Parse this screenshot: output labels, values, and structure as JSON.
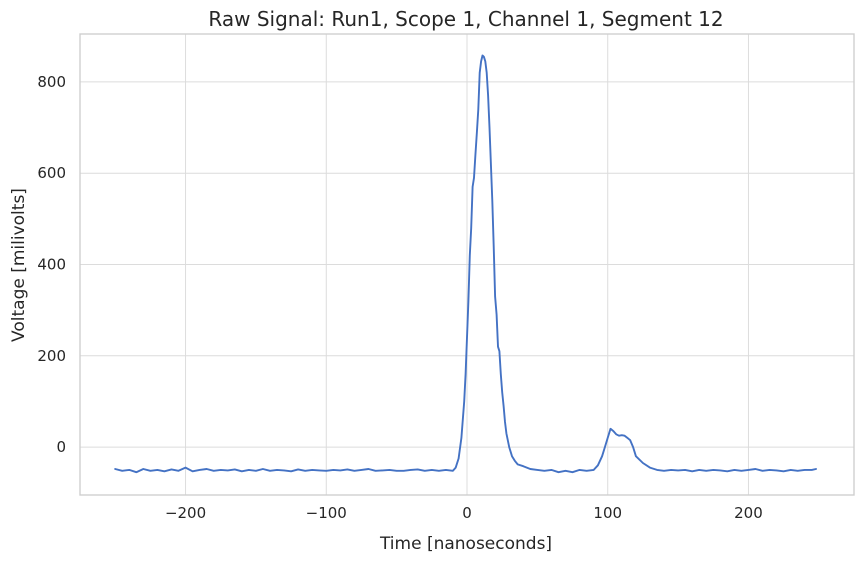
{
  "chart_data": {
    "type": "line",
    "title": "Raw Signal: Run1, Scope 1, Channel 1, Segment 12",
    "xlabel": "Time [nanoseconds]",
    "ylabel": "Voltage [milivolts]",
    "xlim": [
      -275,
      275
    ],
    "ylim": [
      -105,
      905
    ],
    "xticks": [
      -200,
      -100,
      0,
      100,
      200
    ],
    "xtick_labels": [
      "−200",
      "−100",
      "0",
      "100",
      "200"
    ],
    "yticks": [
      0,
      200,
      400,
      600,
      800
    ],
    "ytick_labels": [
      "0",
      "200",
      "400",
      "600",
      "800"
    ],
    "grid": true,
    "legend": "none",
    "series_color": "#4472c4",
    "series": [
      {
        "x": [
          -250,
          -245,
          -240,
          -235,
          -230,
          -225,
          -220,
          -215,
          -210,
          -205,
          -200,
          -195,
          -190,
          -185,
          -180,
          -175,
          -170,
          -165,
          -160,
          -155,
          -150,
          -145,
          -140,
          -135,
          -130,
          -125,
          -120,
          -115,
          -110,
          -105,
          -100,
          -95,
          -90,
          -85,
          -80,
          -75,
          -70,
          -65,
          -60,
          -55,
          -50,
          -45,
          -40,
          -35,
          -30,
          -25,
          -20,
          -15,
          -10,
          -8,
          -6,
          -4,
          -2,
          -1,
          0,
          1,
          2,
          3,
          4,
          5,
          6,
          7,
          8,
          9,
          10,
          11,
          12,
          13,
          14,
          15,
          16,
          17,
          18,
          19,
          20,
          21,
          22,
          23,
          24,
          25,
          26,
          27,
          28,
          30,
          32,
          34,
          36,
          40,
          45,
          50,
          55,
          60,
          65,
          70,
          75,
          80,
          85,
          90,
          93,
          96,
          98,
          100,
          102,
          104,
          106,
          108,
          110,
          112,
          114,
          116,
          118,
          120,
          125,
          130,
          135,
          140,
          145,
          150,
          155,
          160,
          165,
          170,
          175,
          180,
          185,
          190,
          195,
          200,
          205,
          210,
          215,
          220,
          225,
          230,
          235,
          240,
          245,
          248
        ],
        "y": [
          -48,
          -52,
          -50,
          -55,
          -48,
          -52,
          -50,
          -53,
          -49,
          -52,
          -45,
          -53,
          -50,
          -48,
          -52,
          -50,
          -51,
          -49,
          -53,
          -50,
          -52,
          -48,
          -52,
          -50,
          -51,
          -53,
          -49,
          -52,
          -50,
          -51,
          -52,
          -50,
          -51,
          -49,
          -52,
          -50,
          -48,
          -52,
          -51,
          -50,
          -52,
          -52,
          -50,
          -49,
          -52,
          -50,
          -52,
          -50,
          -52,
          -45,
          -25,
          20,
          100,
          160,
          240,
          320,
          420,
          480,
          570,
          590,
          640,
          690,
          740,
          820,
          845,
          858,
          855,
          845,
          820,
          770,
          700,
          620,
          540,
          440,
          330,
          290,
          220,
          210,
          160,
          120,
          90,
          55,
          30,
          0,
          -20,
          -30,
          -38,
          -42,
          -48,
          -50,
          -52,
          -50,
          -55,
          -52,
          -55,
          -50,
          -52,
          -50,
          -40,
          -20,
          0,
          20,
          40,
          35,
          28,
          25,
          26,
          25,
          20,
          15,
          0,
          -20,
          -35,
          -45,
          -50,
          -52,
          -50,
          -51,
          -50,
          -53,
          -50,
          -52,
          -50,
          -51,
          -53,
          -50,
          -52,
          -50,
          -48,
          -52,
          -50,
          -51,
          -53,
          -50,
          -52,
          -50,
          -50,
          -48
        ]
      }
    ]
  }
}
